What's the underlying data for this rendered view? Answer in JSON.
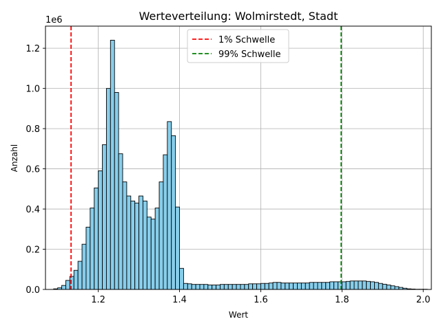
{
  "chart_data": {
    "type": "bar",
    "title": "Werteverteilung: Wolmirstedt, Stadt",
    "xlabel": "Wert",
    "ylabel": "Anzahl",
    "offset_label": "1e6",
    "xlim": [
      1.07,
      2.02
    ],
    "ylim": [
      0,
      1.31
    ],
    "xticks": [
      1.2,
      1.4,
      1.6,
      1.8,
      2.0
    ],
    "xtick_labels": [
      "1.2",
      "1.4",
      "1.6",
      "1.8",
      "2.0"
    ],
    "yticks": [
      0.0,
      0.2,
      0.4,
      0.6,
      0.8,
      1.0,
      1.2
    ],
    "ytick_labels": [
      "0.0",
      "0.2",
      "0.4",
      "0.6",
      "0.8",
      "1.0",
      "1.2"
    ],
    "grid": true,
    "bar_color": "#87CEEB",
    "bar_edge_color": "#000000",
    "bin_start": 1.09,
    "bin_width": 0.01,
    "values": [
      0.003,
      0.008,
      0.02,
      0.045,
      0.065,
      0.095,
      0.14,
      0.225,
      0.31,
      0.405,
      0.505,
      0.59,
      0.72,
      1.0,
      1.24,
      0.98,
      0.675,
      0.535,
      0.465,
      0.44,
      0.43,
      0.465,
      0.44,
      0.36,
      0.35,
      0.405,
      0.535,
      0.67,
      0.835,
      0.765,
      0.41,
      0.105,
      0.03,
      0.028,
      0.025,
      0.025,
      0.025,
      0.025,
      0.022,
      0.022,
      0.022,
      0.025,
      0.025,
      0.025,
      0.025,
      0.025,
      0.025,
      0.025,
      0.028,
      0.028,
      0.028,
      0.03,
      0.03,
      0.032,
      0.035,
      0.035,
      0.032,
      0.032,
      0.032,
      0.032,
      0.032,
      0.032,
      0.032,
      0.035,
      0.035,
      0.035,
      0.035,
      0.035,
      0.038,
      0.038,
      0.038,
      0.038,
      0.04,
      0.042,
      0.042,
      0.042,
      0.042,
      0.04,
      0.038,
      0.035,
      0.03,
      0.026,
      0.022,
      0.018,
      0.014,
      0.01,
      0.006,
      0.003,
      0.002,
      0.001,
      0.001,
      0.001
    ],
    "thresholds": [
      {
        "name": "1% Schwelle",
        "x": 1.133,
        "color": "#FF0000"
      },
      {
        "name": "99% Schwelle",
        "x": 1.798,
        "color": "#008000"
      }
    ],
    "legend_position": "top-center"
  }
}
